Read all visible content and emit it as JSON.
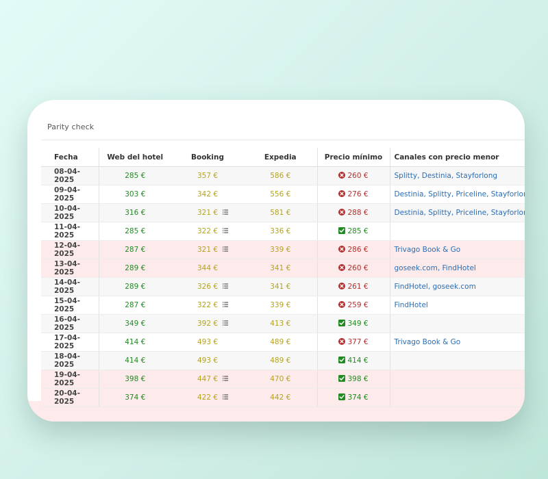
{
  "card": {
    "title": "Parity check"
  },
  "table": {
    "headers": [
      "Fecha",
      "Web del hotel",
      "Booking",
      "Expedia",
      "Precio mínimo",
      "Canales con precio menor"
    ],
    "rows": [
      {
        "date": "08-04-2025",
        "web": "285 €",
        "booking": "357 €",
        "booking_detail": false,
        "expedia": "586 €",
        "min_status": "higher",
        "min": "260 €",
        "channels": "Splitty, Destinia, Stayforlong",
        "highlight": false
      },
      {
        "date": "09-04-2025",
        "web": "303 €",
        "booking": "342 €",
        "booking_detail": false,
        "expedia": "556 €",
        "min_status": "higher",
        "min": "276 €",
        "channels": "Destinia, Splitty, Priceline, Stayforlong",
        "highlight": false
      },
      {
        "date": "10-04-2025",
        "web": "316 €",
        "booking": "321 €",
        "booking_detail": true,
        "expedia": "581 €",
        "min_status": "higher",
        "min": "288 €",
        "channels": "Destinia, Splitty, Priceline, Stayforlong",
        "highlight": false
      },
      {
        "date": "11-04-2025",
        "web": "285 €",
        "booking": "322 €",
        "booking_detail": true,
        "expedia": "336 €",
        "min_status": "ok",
        "min": "285 €",
        "channels": "",
        "highlight": false
      },
      {
        "date": "12-04-2025",
        "web": "287 €",
        "booking": "321 €",
        "booking_detail": true,
        "expedia": "339 €",
        "min_status": "higher",
        "min": "286 €",
        "channels": "Trivago Book & Go",
        "highlight": true
      },
      {
        "date": "13-04-2025",
        "web": "289 €",
        "booking": "344 €",
        "booking_detail": false,
        "expedia": "341 €",
        "min_status": "higher",
        "min": "260 €",
        "channels": "goseek.com, FindHotel",
        "highlight": true
      },
      {
        "date": "14-04-2025",
        "web": "289 €",
        "booking": "326 €",
        "booking_detail": true,
        "expedia": "341 €",
        "min_status": "higher",
        "min": "261 €",
        "channels": "FindHotel, goseek.com",
        "highlight": false
      },
      {
        "date": "15-04-2025",
        "web": "287 €",
        "booking": "322 €",
        "booking_detail": true,
        "expedia": "339 €",
        "min_status": "higher",
        "min": "259 €",
        "channels": "FindHotel",
        "highlight": false
      },
      {
        "date": "16-04-2025",
        "web": "349 €",
        "booking": "392 €",
        "booking_detail": true,
        "expedia": "413 €",
        "min_status": "ok",
        "min": "349 €",
        "channels": "",
        "highlight": false
      },
      {
        "date": "17-04-2025",
        "web": "414 €",
        "booking": "493 €",
        "booking_detail": false,
        "expedia": "489 €",
        "min_status": "higher",
        "min": "377 €",
        "channels": "Trivago Book & Go",
        "highlight": false
      },
      {
        "date": "18-04-2025",
        "web": "414 €",
        "booking": "493 €",
        "booking_detail": false,
        "expedia": "489 €",
        "min_status": "ok",
        "min": "414 €",
        "channels": "",
        "highlight": false
      },
      {
        "date": "19-04-2025",
        "web": "398 €",
        "booking": "447 €",
        "booking_detail": true,
        "expedia": "470 €",
        "min_status": "ok",
        "min": "398 €",
        "channels": "",
        "highlight": true
      },
      {
        "date": "20-04-2025",
        "web": "374 €",
        "booking": "422 €",
        "booking_detail": true,
        "expedia": "442 €",
        "min_status": "ok",
        "min": "374 €",
        "channels": "",
        "highlight": true
      }
    ]
  },
  "colors": {
    "web_price": "#218a21",
    "ota_price": "#b5a31c",
    "min_higher": "#b03030",
    "min_ok": "#218a21",
    "channel_link": "#2a6db5",
    "highlight_row": "#fdeaea"
  },
  "icons": {
    "higher": "x-circle-icon",
    "ok": "check-square-icon",
    "detail": "list-icon"
  }
}
